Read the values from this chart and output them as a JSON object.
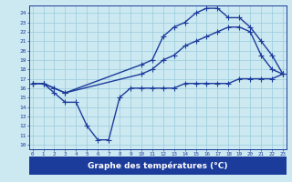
{
  "line1_x": [
    0,
    1,
    2,
    3,
    10,
    11,
    12,
    13,
    14,
    15,
    16,
    17,
    18,
    19,
    20,
    21,
    22,
    23
  ],
  "line1_y": [
    16.5,
    16.5,
    16.0,
    15.5,
    18.5,
    19.0,
    21.5,
    22.5,
    23.0,
    24.0,
    24.5,
    24.5,
    23.5,
    23.5,
    22.5,
    21.0,
    19.5,
    17.5
  ],
  "line2_x": [
    0,
    1,
    2,
    3,
    10,
    11,
    12,
    13,
    14,
    15,
    16,
    17,
    18,
    19,
    20,
    21,
    22,
    23
  ],
  "line2_y": [
    16.5,
    16.5,
    16.0,
    15.5,
    17.5,
    18.0,
    19.0,
    19.5,
    20.5,
    21.0,
    21.5,
    22.0,
    22.5,
    22.5,
    22.0,
    19.5,
    18.0,
    17.5
  ],
  "line3_x": [
    0,
    1,
    2,
    3,
    4,
    5,
    6,
    7,
    8,
    9,
    10,
    11,
    12,
    13,
    14,
    15,
    16,
    17,
    18,
    19,
    20,
    21,
    22,
    23
  ],
  "line3_y": [
    16.5,
    16.5,
    15.5,
    14.5,
    14.5,
    12.0,
    10.5,
    10.5,
    15.0,
    16.0,
    16.0,
    16.0,
    16.0,
    16.0,
    16.5,
    16.5,
    16.5,
    16.5,
    16.5,
    17.0,
    17.0,
    17.0,
    17.0,
    17.5
  ],
  "line_color": "#1c3c9c",
  "bg_color": "#cce8f0",
  "grid_color": "#99ccdd",
  "xlabel": "Graphe des températures (°C)",
  "xlabel_bg": "#1c3c9c",
  "xlabel_fg": "#ffffff",
  "xtick_labels": [
    "0",
    "1",
    "2",
    "3",
    "4",
    "5",
    "6",
    "7",
    "8",
    "9",
    "10",
    "11",
    "12",
    "13",
    "14",
    "15",
    "16",
    "17",
    "18",
    "19",
    "20",
    "21",
    "22",
    "23"
  ],
  "xticks": [
    0,
    1,
    2,
    3,
    4,
    5,
    6,
    7,
    8,
    9,
    10,
    11,
    12,
    13,
    14,
    15,
    16,
    17,
    18,
    19,
    20,
    21,
    22,
    23
  ],
  "yticks": [
    10,
    11,
    12,
    13,
    14,
    15,
    16,
    17,
    18,
    19,
    20,
    21,
    22,
    23,
    24
  ],
  "ylim": [
    9.5,
    24.8
  ],
  "xlim": [
    -0.3,
    23.3
  ],
  "marker": "+",
  "markersize": 4,
  "linewidth": 1.0
}
